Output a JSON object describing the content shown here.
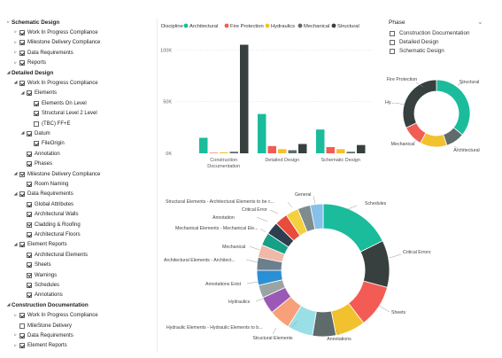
{
  "tree": [
    {
      "label": "Schematic Design",
      "level": 0,
      "bold": true,
      "toggle": "collapsed"
    },
    {
      "label": "Work In Progress Compliance",
      "level": 1,
      "checked": true,
      "toggle": "collapsed"
    },
    {
      "label": "Milestone Delivery Compliance",
      "level": 1,
      "checked": true,
      "toggle": "collapsed"
    },
    {
      "label": "Data Requirements",
      "level": 1,
      "checked": true,
      "toggle": "collapsed"
    },
    {
      "label": "Reports",
      "level": 1,
      "checked": true,
      "toggle": "collapsed"
    },
    {
      "label": "Detailed Design",
      "level": 0,
      "bold": true,
      "toggle": "expanded"
    },
    {
      "label": "Work In Progress Compliance",
      "level": 1,
      "checked": true,
      "toggle": "expanded"
    },
    {
      "label": "Elements",
      "level": 2,
      "checked": true,
      "toggle": "expanded"
    },
    {
      "label": "Elements On Level",
      "level": 3,
      "checked": true
    },
    {
      "label": "Structural Level 2 Level",
      "level": 3,
      "checked": true
    },
    {
      "label": "(TBC) FF+E",
      "level": 3,
      "checked": false
    },
    {
      "label": "Datum",
      "level": 2,
      "checked": true,
      "toggle": "expanded"
    },
    {
      "label": "FileOrigin",
      "level": 3,
      "checked": true
    },
    {
      "label": "Annotation",
      "level": 2,
      "checked": true
    },
    {
      "label": "Phases",
      "level": 2,
      "checked": true
    },
    {
      "label": "Milestone Delivery Compliance",
      "level": 1,
      "checked": true,
      "toggle": "expanded"
    },
    {
      "label": "Room Naming",
      "level": 2,
      "checked": true
    },
    {
      "label": "Data Requirements",
      "level": 1,
      "checked": true,
      "toggle": "expanded"
    },
    {
      "label": "Global Attributes",
      "level": 2,
      "checked": true
    },
    {
      "label": "Architectural Walls",
      "level": 2,
      "checked": true
    },
    {
      "label": "Cladding & Roofing",
      "level": 2,
      "checked": true
    },
    {
      "label": "Architectural Floors",
      "level": 2,
      "checked": true
    },
    {
      "label": "Element Reports",
      "level": 1,
      "checked": true,
      "toggle": "expanded"
    },
    {
      "label": "Architectural Elements",
      "level": 2,
      "checked": true
    },
    {
      "label": "Sheets",
      "level": 2,
      "checked": true
    },
    {
      "label": "Warnings",
      "level": 2,
      "checked": true
    },
    {
      "label": "Schedules",
      "level": 2,
      "checked": true
    },
    {
      "label": "Annotations",
      "level": 2,
      "checked": true
    },
    {
      "label": "Construction Documentation",
      "level": 0,
      "bold": true,
      "toggle": "expanded"
    },
    {
      "label": "Work In Progress Compliance",
      "level": 1,
      "checked": true,
      "toggle": "collapsed"
    },
    {
      "label": "MileStone Delivery",
      "level": 1,
      "checked": false
    },
    {
      "label": "Data Requirements",
      "level": 1,
      "checked": true,
      "toggle": "collapsed"
    },
    {
      "label": "Element Reports",
      "level": 1,
      "checked": true,
      "toggle": "collapsed"
    }
  ],
  "slicer": {
    "title": "Phase",
    "chevron_icon": "chevron-down-icon",
    "items": [
      "Construction Documentation",
      "Detailed Design",
      "Schematic Design"
    ]
  },
  "colors": {
    "Architectural": "#1abc9c",
    "Fire Protection": "#f25c54",
    "Hydraulics": "#f2c12e",
    "Mechanical": "#5f6b6b",
    "Structural": "#37403f"
  },
  "chart_data": [
    {
      "type": "bar",
      "legend_title": "Discipline",
      "legend_placement": "top",
      "categories": [
        "Construction Documentation",
        "Detailed Design",
        "Schematic Design"
      ],
      "category_labels": [
        [
          "Construction",
          "Documentation"
        ],
        [
          "Detailed Design"
        ],
        [
          "Schematic Design"
        ]
      ],
      "series": [
        {
          "name": "Architectural",
          "values": [
            15000,
            38000,
            23000
          ]
        },
        {
          "name": "Fire Protection",
          "values": [
            500,
            7000,
            6000
          ]
        },
        {
          "name": "Hydraulics",
          "values": [
            1000,
            4000,
            4000
          ]
        },
        {
          "name": "Mechanical",
          "values": [
            1500,
            3000,
            1500
          ]
        },
        {
          "name": "Structural",
          "values": [
            105000,
            9000,
            8000
          ]
        }
      ],
      "y_ticks": [
        0,
        50000,
        100000
      ],
      "y_tick_labels": [
        "0K",
        "50K",
        "100K"
      ],
      "ylim": [
        0,
        108000
      ],
      "grid": true
    },
    {
      "type": "pie",
      "donut": true,
      "slices": [
        {
          "label": "Architectural",
          "value": 36
        },
        {
          "label": "Mechanical",
          "value": 9
        },
        {
          "label": "Hydraulics",
          "value": 13
        },
        {
          "label": "Fire Protection",
          "value": 10
        },
        {
          "label": "Structural",
          "value": 32
        }
      ],
      "labels": [
        "Structural",
        "Fire Protection",
        "Hy...",
        "Mechanical",
        "Architectural"
      ]
    },
    {
      "type": "pie",
      "donut": true,
      "slices": [
        {
          "label": "Schedules",
          "value": 17,
          "color": "#1abc9c"
        },
        {
          "label": "Critical Errors",
          "value": 11,
          "color": "#37403f"
        },
        {
          "label": "Sheets",
          "value": 10,
          "color": "#f25c54"
        },
        {
          "label": "Annotations",
          "value": 7,
          "color": "#f2c12e"
        },
        {
          "label": "Structural Elements",
          "value": 5.5,
          "color": "#5f6b6b"
        },
        {
          "label": "Hydraulic Elements - Hydraulic Elements to b...",
          "value": 6,
          "color": "#9adfe6"
        },
        {
          "label": "Hydraulics",
          "value": 5,
          "color": "#f7a07a"
        },
        {
          "label": "Annotations Exist",
          "value": 4,
          "color": "#9b59b6"
        },
        {
          "label": "",
          "value": 3,
          "color": "#9aa5a3"
        },
        {
          "label": "Architectural Elements - Architect...",
          "value": 3.5,
          "color": "#2a8fd4"
        },
        {
          "label": "",
          "value": 3,
          "color": "#6c7f8d"
        },
        {
          "label": "Mechanical",
          "value": 3,
          "color": "#f0b8a8"
        },
        {
          "label": "Mechanical Elements - Mechanical Ele...",
          "value": 3,
          "color": "#16a085"
        },
        {
          "label": "Annotation",
          "value": 3,
          "color": "#2c3e50"
        },
        {
          "label": "Critical Error",
          "value": 3,
          "color": "#e74c3c"
        },
        {
          "label": "Structural Elements - Architectural Elements to be c...",
          "value": 3,
          "color": "#f4d03f"
        },
        {
          "label": "General",
          "value": 3,
          "color": "#7f8c8d"
        },
        {
          "label": "",
          "value": 3,
          "color": "#85c1e9"
        }
      ]
    }
  ]
}
